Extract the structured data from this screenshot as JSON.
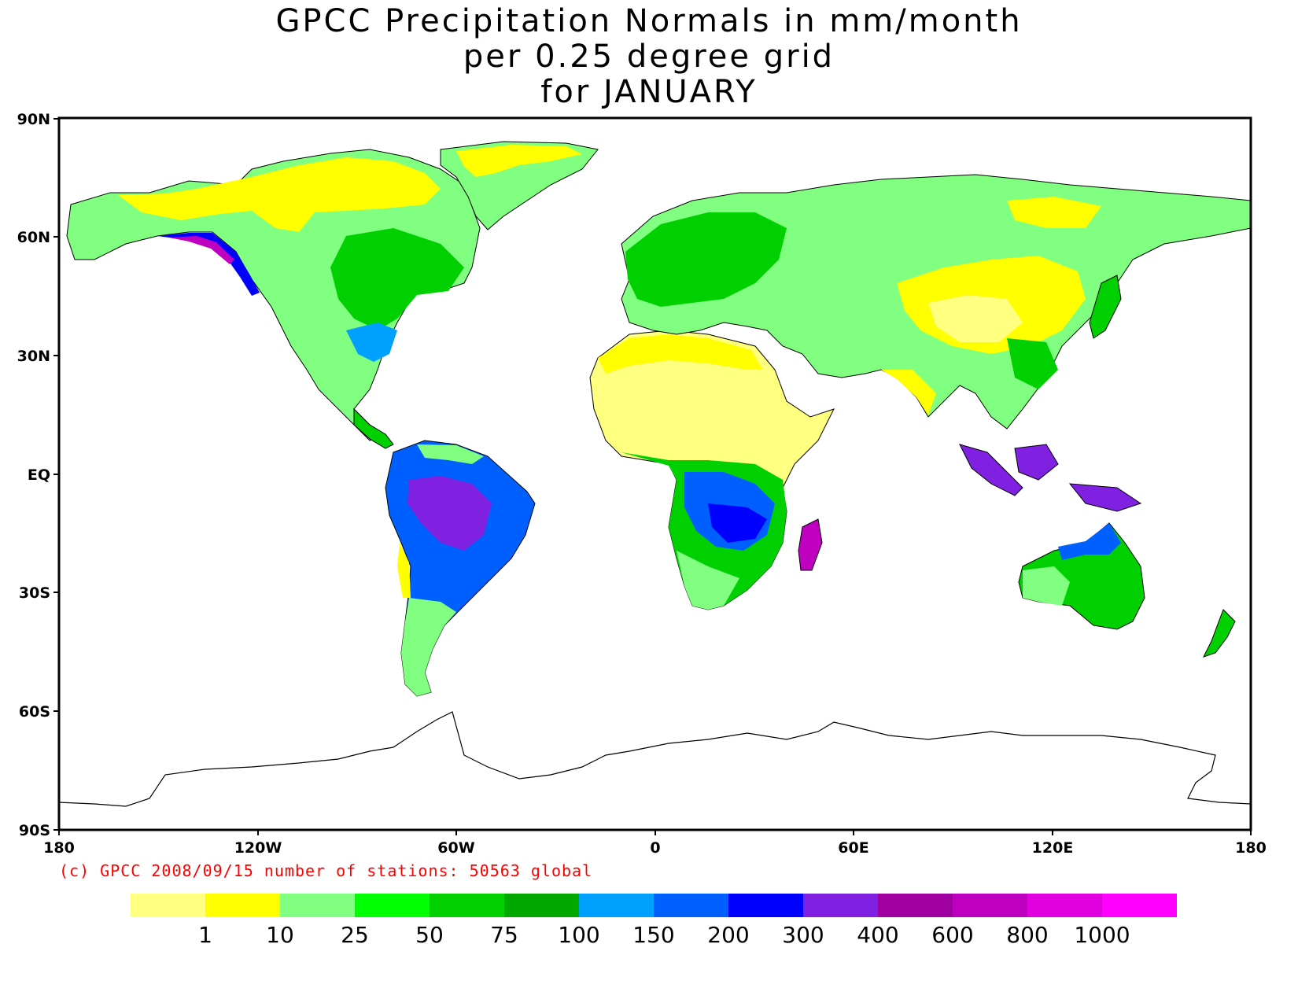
{
  "title": {
    "line1": "GPCC Precipitation Normals in mm/month",
    "line2": "per 0.25 degree grid",
    "line3": "for JANUARY"
  },
  "axes": {
    "lat_labels": [
      "90N",
      "60N",
      "30N",
      "EQ",
      "30S",
      "60S",
      "90S"
    ],
    "lon_labels": [
      "180",
      "120W",
      "60W",
      "0",
      "60E",
      "120E",
      "180"
    ]
  },
  "footer": {
    "copyright": "(c) GPCC 2008/09/15 number of stations: 50563 global"
  },
  "legend": {
    "colors": [
      "#ffff80",
      "#ffff00",
      "#80ff80",
      "#00ff00",
      "#00d000",
      "#00a800",
      "#00a0ff",
      "#0060ff",
      "#0000ff",
      "#8020e0",
      "#a000a0",
      "#c000c0",
      "#e000e0",
      "#ff00ff"
    ],
    "labels": [
      "1",
      "10",
      "25",
      "50",
      "75",
      "100",
      "150",
      "200",
      "300",
      "400",
      "600",
      "800",
      "1000"
    ]
  }
}
